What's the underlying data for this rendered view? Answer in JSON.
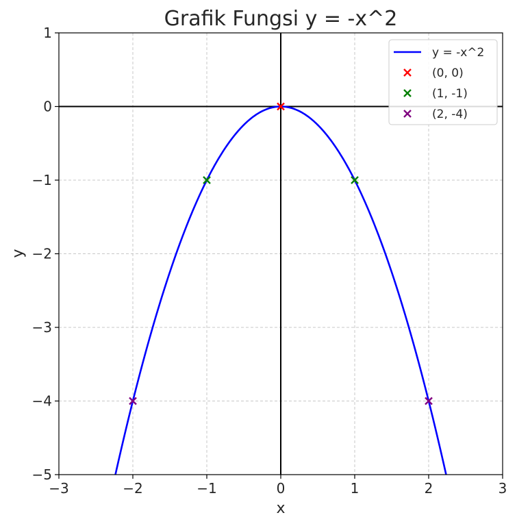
{
  "chart_data": {
    "type": "line",
    "title": "Grafik Fungsi y = -x^2",
    "xlabel": "x",
    "ylabel": "y",
    "xlim": [
      -3,
      3
    ],
    "ylim": [
      -5,
      1
    ],
    "x_ticks": [
      -3,
      -2,
      -1,
      0,
      1,
      2,
      3
    ],
    "y_ticks": [
      1,
      0,
      -1,
      -2,
      -3,
      -4,
      -5
    ],
    "x_tick_labels": [
      "−3",
      "−2",
      "−1",
      "0",
      "1",
      "2",
      "3"
    ],
    "y_tick_labels": [
      "1",
      "0",
      "−1",
      "−2",
      "−3",
      "−4",
      "−5"
    ],
    "grid": true,
    "legend_position": "top-right",
    "series": [
      {
        "name": "y = -x^2",
        "color": "#0000ff",
        "function": "-x^2",
        "x_range": [
          -2.24,
          2.24
        ]
      }
    ],
    "points": [
      {
        "name": "(0, 0)",
        "color": "#ff0000",
        "values": [
          [
            0,
            0
          ]
        ]
      },
      {
        "name": "(1, -1)",
        "color": "#008000",
        "values": [
          [
            -1,
            -1
          ],
          [
            1,
            -1
          ]
        ]
      },
      {
        "name": "(2, -4)",
        "color": "#800080",
        "values": [
          [
            -2,
            -4
          ],
          [
            2,
            -4
          ]
        ]
      }
    ]
  }
}
